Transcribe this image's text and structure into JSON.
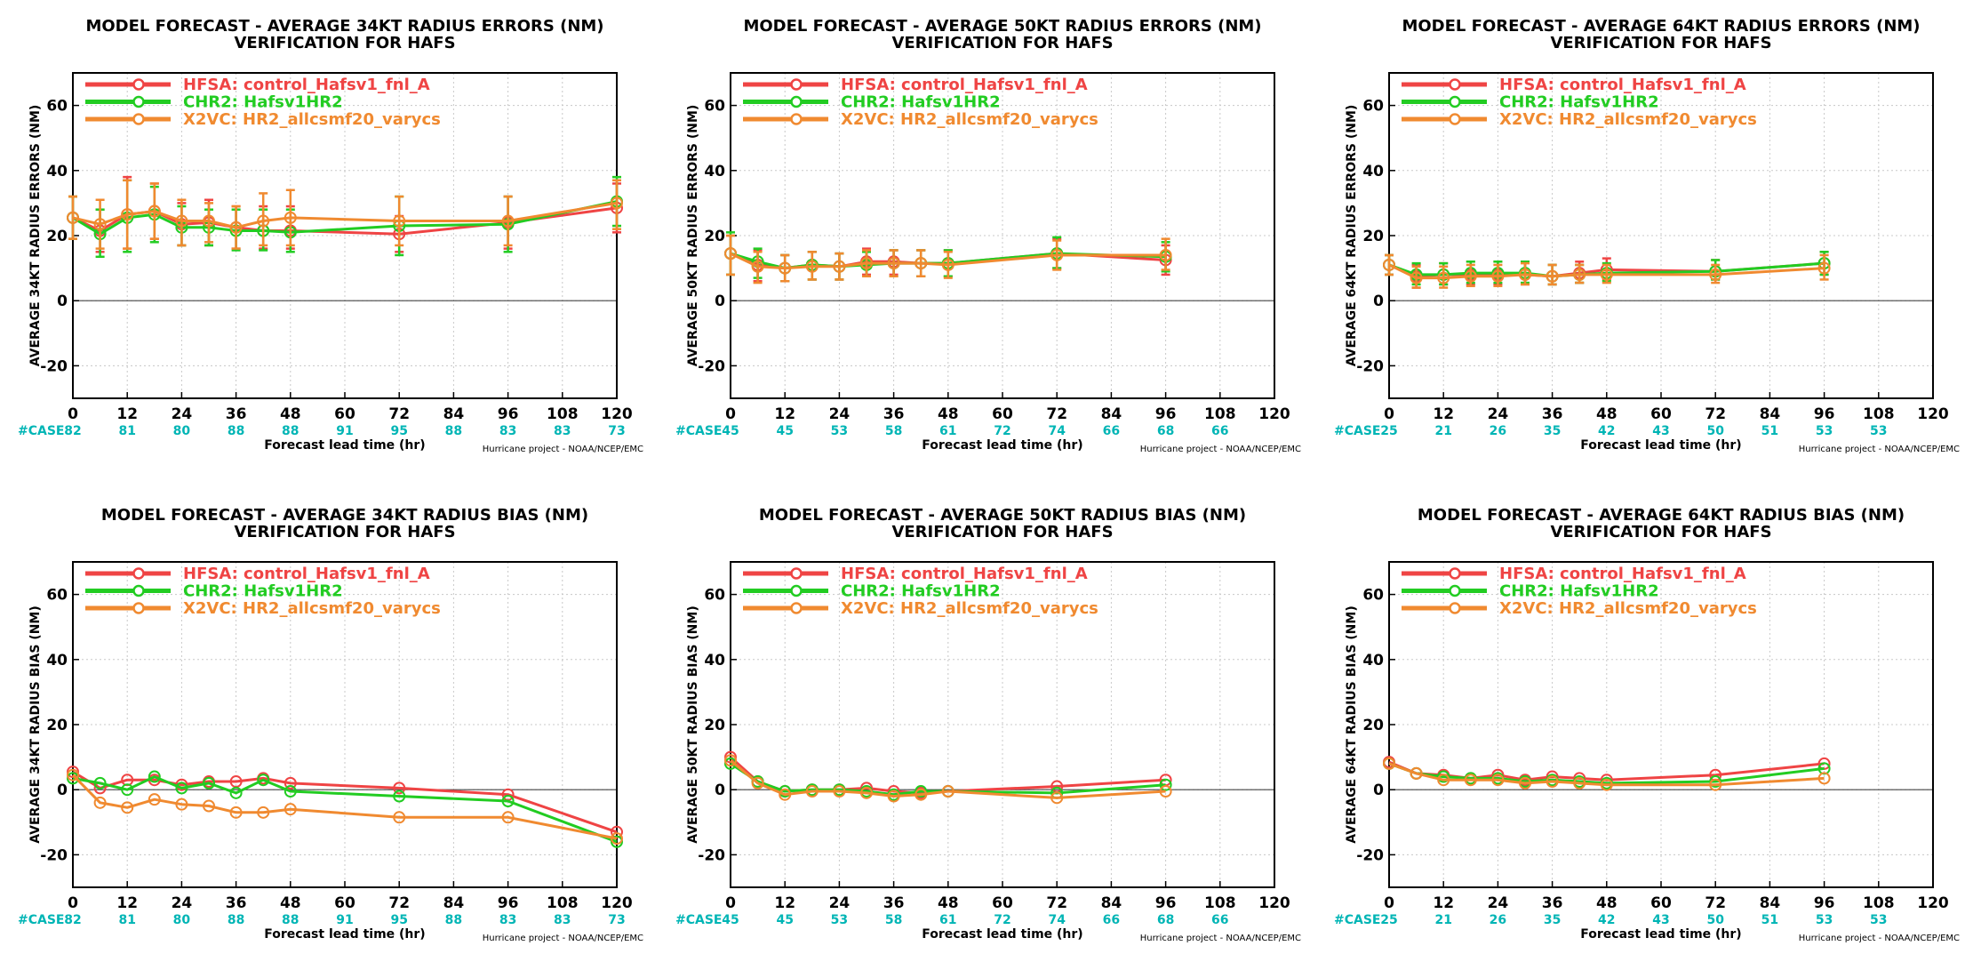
{
  "page": {
    "background": "#ffffff"
  },
  "chart_data": [
    {
      "type": "line",
      "title": "MODEL FORECAST - AVERAGE 34KT RADIUS ERRORS (NM)",
      "subtitle": "VERIFICATION FOR HAFS",
      "xlabel": "Forecast lead time (hr)",
      "ylabel": "AVERAGE 34KT RADIUS ERRORS (NM)",
      "credit": "Hurricane project - NOAA/NCEP/EMC",
      "xlim": [
        0,
        120
      ],
      "ylim": [
        -30,
        70
      ],
      "xticks": [
        0,
        12,
        24,
        36,
        48,
        60,
        72,
        84,
        96,
        108,
        120
      ],
      "yticks": [
        -20,
        0,
        20,
        40,
        60
      ],
      "grid": true,
      "legend": "top-left",
      "case_label": "#CASE",
      "case_counts": [
        82,
        81,
        80,
        88,
        88,
        91,
        95,
        88,
        83,
        83,
        73
      ],
      "series": [
        {
          "name": "HFSA: control_Hafsv1_fnl_A",
          "color": "#ef4444",
          "x": [
            0,
            6,
            12,
            18,
            24,
            30,
            36,
            42,
            48,
            72,
            96,
            120
          ],
          "y": [
            25.5,
            21.5,
            26.5,
            27.5,
            23.5,
            24,
            22.5,
            21.5,
            21.5,
            20.5,
            24,
            28.5
          ],
          "lo": [
            19,
            15,
            16,
            19,
            17,
            17,
            16,
            16,
            16,
            15,
            16,
            21
          ],
          "hi": [
            32,
            28,
            38,
            36,
            30,
            31,
            29,
            29,
            29,
            26,
            32,
            36
          ]
        },
        {
          "name": "CHR2: Hafsv1HR2",
          "color": "#22cc22",
          "x": [
            0,
            6,
            12,
            18,
            24,
            30,
            36,
            42,
            48,
            72,
            96,
            120
          ],
          "y": [
            25.5,
            20.5,
            25.5,
            26.5,
            22.5,
            22.5,
            21.5,
            21.5,
            21,
            23,
            23.5,
            30.5
          ],
          "lo": [
            19,
            13.5,
            15,
            18,
            17,
            17,
            15.5,
            15.5,
            15,
            14,
            15,
            23
          ],
          "hi": [
            32,
            28,
            37,
            35,
            29,
            28,
            28,
            28,
            28,
            32,
            32,
            38
          ]
        },
        {
          "name": "X2VC: HR2_allcsmf20_varycs",
          "color": "#f08a30",
          "x": [
            0,
            6,
            12,
            18,
            24,
            30,
            36,
            42,
            48,
            72,
            96,
            120
          ],
          "y": [
            25.5,
            23.5,
            26.5,
            27.5,
            24.5,
            24.5,
            22.5,
            24.5,
            25.5,
            24.5,
            24.5,
            30
          ],
          "lo": [
            19,
            16,
            16,
            19,
            17,
            18,
            16,
            17,
            17,
            17,
            17,
            22
          ],
          "hi": [
            32,
            31,
            37,
            36,
            31,
            30,
            29,
            33,
            34,
            32,
            32,
            37
          ]
        }
      ]
    },
    {
      "type": "line",
      "title": "MODEL FORECAST - AVERAGE 50KT RADIUS ERRORS (NM)",
      "subtitle": "VERIFICATION FOR HAFS",
      "xlabel": "Forecast lead time (hr)",
      "ylabel": "AVERAGE 50KT RADIUS ERRORS (NM)",
      "credit": "Hurricane project - NOAA/NCEP/EMC",
      "xlim": [
        0,
        120
      ],
      "ylim": [
        -30,
        70
      ],
      "xticks": [
        0,
        12,
        24,
        36,
        48,
        60,
        72,
        84,
        96,
        108,
        120
      ],
      "yticks": [
        -20,
        0,
        20,
        40,
        60
      ],
      "grid": true,
      "legend": "top-left",
      "case_label": "#CASE",
      "case_counts": [
        45,
        45,
        53,
        58,
        61,
        72,
        74,
        66,
        68,
        66
      ],
      "series": [
        {
          "name": "HFSA: control_Hafsv1_fnl_A",
          "color": "#ef4444",
          "x": [
            0,
            6,
            12,
            18,
            24,
            30,
            36,
            42,
            48,
            72,
            96
          ],
          "y": [
            14.5,
            11,
            10,
            11,
            10.5,
            12,
            12,
            11.5,
            11.5,
            14.5,
            12.5
          ],
          "lo": [
            8,
            6,
            6,
            6.5,
            6.5,
            8,
            8,
            7.5,
            7.5,
            10,
            8
          ],
          "hi": [
            20,
            15.5,
            14,
            15,
            14.5,
            16,
            15.5,
            15.5,
            15.5,
            19,
            17
          ]
        },
        {
          "name": "CHR2: Hafsv1HR2",
          "color": "#22cc22",
          "x": [
            0,
            6,
            12,
            18,
            24,
            30,
            36,
            42,
            48,
            72,
            96
          ],
          "y": [
            14.5,
            12,
            10,
            11,
            10.5,
            11,
            11.5,
            11.5,
            11.5,
            14.5,
            13.5
          ],
          "lo": [
            8,
            7,
            6,
            6.5,
            6.5,
            7.5,
            7.5,
            7.5,
            7.5,
            10,
            9
          ],
          "hi": [
            21,
            16,
            14,
            15,
            14.5,
            15,
            15.5,
            15.5,
            15.5,
            19.5,
            18
          ]
        },
        {
          "name": "X2VC: HR2_allcsmf20_varycs",
          "color": "#f08a30",
          "x": [
            0,
            6,
            12,
            18,
            24,
            30,
            36,
            42,
            48,
            72,
            96
          ],
          "y": [
            14.5,
            10.5,
            10,
            10.5,
            10.5,
            11.5,
            11.5,
            11.5,
            11,
            14,
            14
          ],
          "lo": [
            8,
            5.5,
            6,
            6.5,
            6.5,
            7.5,
            7.5,
            7.5,
            7,
            9.5,
            9.5
          ],
          "hi": [
            20,
            15,
            14,
            15,
            14.5,
            15.5,
            15.5,
            15.5,
            15,
            18.5,
            19
          ]
        }
      ]
    },
    {
      "type": "line",
      "title": "MODEL FORECAST - AVERAGE 64KT RADIUS ERRORS (NM)",
      "subtitle": "VERIFICATION FOR HAFS",
      "xlabel": "Forecast lead time (hr)",
      "ylabel": "AVERAGE 64KT RADIUS ERRORS (NM)",
      "credit": "Hurricane project - NOAA/NCEP/EMC",
      "xlim": [
        0,
        120
      ],
      "ylim": [
        -30,
        70
      ],
      "xticks": [
        0,
        12,
        24,
        36,
        48,
        60,
        72,
        84,
        96,
        108,
        120
      ],
      "yticks": [
        -20,
        0,
        20,
        40,
        60
      ],
      "grid": true,
      "legend": "top-left",
      "case_label": "#CASE",
      "case_counts": [
        25,
        21,
        26,
        35,
        42,
        43,
        50,
        51,
        53,
        53
      ],
      "series": [
        {
          "name": "HFSA: control_Hafsv1_fnl_A",
          "color": "#ef4444",
          "x": [
            0,
            6,
            12,
            18,
            24,
            30,
            36,
            42,
            48,
            72,
            96
          ],
          "y": [
            11,
            7.5,
            8,
            8,
            8,
            8,
            7.5,
            8.5,
            9.5,
            9,
            11.5
          ],
          "lo": [
            8,
            4,
            5,
            5,
            5,
            5,
            5,
            5.5,
            6.5,
            6.5,
            8
          ],
          "hi": [
            14,
            11,
            11.5,
            12,
            12,
            12,
            11,
            12,
            13,
            12.5,
            15
          ]
        },
        {
          "name": "CHR2: Hafsv1HR2",
          "color": "#22cc22",
          "x": [
            0,
            6,
            12,
            18,
            24,
            30,
            36,
            42,
            48,
            72,
            96
          ],
          "y": [
            11,
            8,
            8,
            8.5,
            8.5,
            8.5,
            7.5,
            8,
            8.5,
            9,
            11.5
          ],
          "lo": [
            8,
            5,
            5,
            5.5,
            5.5,
            5.5,
            5,
            5.5,
            6,
            6.5,
            8
          ],
          "hi": [
            14,
            11.5,
            11.5,
            12,
            12,
            12,
            11,
            11,
            11.5,
            12.5,
            15
          ]
        },
        {
          "name": "X2VC: HR2_allcsmf20_varycs",
          "color": "#f08a30",
          "x": [
            0,
            6,
            12,
            18,
            24,
            30,
            36,
            42,
            48,
            72,
            96
          ],
          "y": [
            11,
            7,
            7,
            7.5,
            7.5,
            8,
            7.5,
            8,
            8,
            8,
            10
          ],
          "lo": [
            8,
            4,
            4,
            4.5,
            4.5,
            5,
            5,
            5.5,
            5.5,
            5.5,
            6.5
          ],
          "hi": [
            14,
            10.5,
            10.5,
            11,
            11,
            11.5,
            11,
            11,
            11,
            11,
            14
          ]
        }
      ]
    },
    {
      "type": "line",
      "title": "MODEL FORECAST - AVERAGE 34KT RADIUS BIAS (NM)",
      "subtitle": "VERIFICATION FOR HAFS",
      "xlabel": "Forecast lead time (hr)",
      "ylabel": "AVERAGE 34KT RADIUS BIAS (NM)",
      "credit": "Hurricane project - NOAA/NCEP/EMC",
      "xlim": [
        0,
        120
      ],
      "ylim": [
        -30,
        70
      ],
      "xticks": [
        0,
        12,
        24,
        36,
        48,
        60,
        72,
        84,
        96,
        108,
        120
      ],
      "yticks": [
        -20,
        0,
        20,
        40,
        60
      ],
      "grid": true,
      "legend": "top-left",
      "case_label": "#CASE",
      "case_counts": [
        82,
        81,
        80,
        88,
        88,
        91,
        95,
        88,
        83,
        83,
        73
      ],
      "series": [
        {
          "name": "HFSA: control_Hafsv1_fnl_A",
          "color": "#ef4444",
          "x": [
            0,
            6,
            12,
            18,
            24,
            30,
            36,
            42,
            48,
            72,
            96,
            120
          ],
          "y": [
            5.5,
            0.5,
            3,
            3,
            1.5,
            2.5,
            2.5,
            3.5,
            2,
            0.5,
            -1.5,
            -13
          ]
        },
        {
          "name": "CHR2: Hafsv1HR2",
          "color": "#22cc22",
          "x": [
            0,
            6,
            12,
            18,
            24,
            30,
            36,
            42,
            48,
            72,
            96,
            120
          ],
          "y": [
            3.5,
            2,
            0,
            4,
            0.5,
            2,
            -1,
            3,
            -0.5,
            -2,
            -3.5,
            -16
          ]
        },
        {
          "name": "X2VC: HR2_allcsmf20_varycs",
          "color": "#f08a30",
          "x": [
            0,
            6,
            12,
            18,
            24,
            30,
            36,
            42,
            48,
            72,
            96,
            120
          ],
          "y": [
            4.5,
            -4,
            -5.5,
            -3,
            -4.5,
            -5,
            -7,
            -7,
            -6,
            -8.5,
            -8.5,
            -15
          ]
        }
      ]
    },
    {
      "type": "line",
      "title": "MODEL FORECAST - AVERAGE 50KT RADIUS BIAS (NM)",
      "subtitle": "VERIFICATION FOR HAFS",
      "xlabel": "Forecast lead time (hr)",
      "ylabel": "AVERAGE 50KT RADIUS BIAS (NM)",
      "credit": "Hurricane project - NOAA/NCEP/EMC",
      "xlim": [
        0,
        120
      ],
      "ylim": [
        -30,
        70
      ],
      "xticks": [
        0,
        12,
        24,
        36,
        48,
        60,
        72,
        84,
        96,
        108,
        120
      ],
      "yticks": [
        -20,
        0,
        20,
        40,
        60
      ],
      "grid": true,
      "legend": "top-left",
      "case_label": "#CASE",
      "case_counts": [
        45,
        45,
        53,
        58,
        61,
        72,
        74,
        66,
        68,
        66
      ],
      "series": [
        {
          "name": "HFSA: control_Hafsv1_fnl_A",
          "color": "#ef4444",
          "x": [
            0,
            6,
            12,
            18,
            24,
            30,
            36,
            42,
            48,
            72,
            96
          ],
          "y": [
            10,
            2.5,
            -0.5,
            0,
            0,
            0.5,
            -0.5,
            -1,
            -0.5,
            1,
            3
          ]
        },
        {
          "name": "CHR2: Hafsv1HR2",
          "color": "#22cc22",
          "x": [
            0,
            6,
            12,
            18,
            24,
            30,
            36,
            42,
            48,
            72,
            96
          ],
          "y": [
            8,
            2.5,
            -0.5,
            0,
            0,
            -0.5,
            -1.5,
            -0.5,
            -0.5,
            -1,
            1.5
          ]
        },
        {
          "name": "X2VC: HR2_allcsmf20_varycs",
          "color": "#f08a30",
          "x": [
            0,
            6,
            12,
            18,
            24,
            30,
            36,
            42,
            48,
            72,
            96
          ],
          "y": [
            9,
            2,
            -1.5,
            -0.5,
            -0.5,
            -1,
            -2,
            -1.5,
            -0.5,
            -2.5,
            -0.5
          ]
        }
      ]
    },
    {
      "type": "line",
      "title": "MODEL FORECAST - AVERAGE 64KT RADIUS BIAS (NM)",
      "subtitle": "VERIFICATION FOR HAFS",
      "xlabel": "Forecast lead time (hr)",
      "ylabel": "AVERAGE 64KT RADIUS BIAS (NM)",
      "credit": "Hurricane project - NOAA/NCEP/EMC",
      "xlim": [
        0,
        120
      ],
      "ylim": [
        -30,
        70
      ],
      "xticks": [
        0,
        12,
        24,
        36,
        48,
        60,
        72,
        84,
        96,
        108,
        120
      ],
      "yticks": [
        -20,
        0,
        20,
        40,
        60
      ],
      "grid": true,
      "legend": "top-left",
      "case_label": "#CASE",
      "case_counts": [
        25,
        21,
        26,
        35,
        42,
        43,
        50,
        51,
        53,
        53
      ],
      "series": [
        {
          "name": "HFSA: control_Hafsv1_fnl_A",
          "color": "#ef4444",
          "x": [
            0,
            6,
            12,
            18,
            24,
            30,
            36,
            42,
            48,
            72,
            96
          ],
          "y": [
            8.5,
            5,
            4.5,
            3.5,
            4.5,
            3,
            4,
            3.5,
            3,
            4.5,
            8
          ]
        },
        {
          "name": "CHR2: Hafsv1HR2",
          "color": "#22cc22",
          "x": [
            0,
            6,
            12,
            18,
            24,
            30,
            36,
            42,
            48,
            72,
            96
          ],
          "y": [
            8,
            5,
            4,
            3.5,
            3.5,
            2.5,
            3,
            2.5,
            2,
            2.5,
            6.5
          ]
        },
        {
          "name": "X2VC: HR2_allcsmf20_varycs",
          "color": "#f08a30",
          "x": [
            0,
            6,
            12,
            18,
            24,
            30,
            36,
            42,
            48,
            72,
            96
          ],
          "y": [
            8,
            5,
            3,
            3,
            3,
            2,
            2.5,
            2,
            1.5,
            1.5,
            3.5
          ]
        }
      ]
    }
  ]
}
